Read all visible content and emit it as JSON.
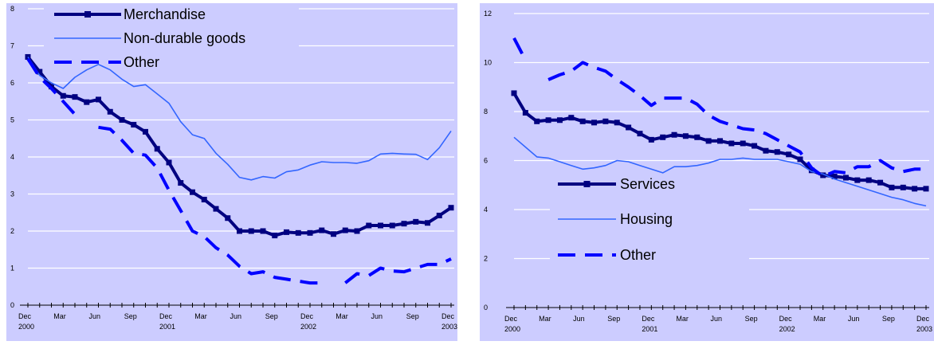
{
  "chart_data": [
    {
      "type": "line",
      "ylim": [
        0,
        8
      ],
      "yticks": [
        "0",
        "1",
        "2",
        "3",
        "4",
        "5",
        "6",
        "7",
        "8"
      ],
      "grid": "horizontal",
      "legend_position": "top-left",
      "background": "#ccccff",
      "xtick_months": [
        "Dec",
        "Mar",
        "Jun",
        "Sep",
        "Dec",
        "Mar",
        "Jun",
        "Sep",
        "Dec",
        "Mar",
        "Jun",
        "Sep",
        "Dec"
      ],
      "xtick_years": [
        "2000",
        "",
        "",
        "",
        "2001",
        "",
        "",
        "",
        "2002",
        "",
        "",
        "",
        "2003"
      ],
      "x": [
        "2000-12",
        "2001-01",
        "2001-02",
        "2001-03",
        "2001-04",
        "2001-05",
        "2001-06",
        "2001-07",
        "2001-08",
        "2001-09",
        "2001-10",
        "2001-11",
        "2001-12",
        "2002-01",
        "2002-02",
        "2002-03",
        "2002-04",
        "2002-05",
        "2002-06",
        "2002-07",
        "2002-08",
        "2002-09",
        "2002-10",
        "2002-11",
        "2002-12",
        "2003-01",
        "2003-02",
        "2003-03",
        "2003-04",
        "2003-05",
        "2003-06",
        "2003-07",
        "2003-08",
        "2003-09",
        "2003-10",
        "2003-11",
        "2003-12"
      ],
      "series": [
        {
          "name": "Merchandise",
          "style": "thick-markers",
          "color": "#000080",
          "values": [
            6.7,
            6.3,
            5.9,
            5.65,
            5.62,
            5.48,
            5.55,
            5.22,
            5.0,
            4.87,
            4.68,
            4.22,
            3.85,
            3.3,
            3.05,
            2.85,
            2.6,
            2.35,
            2.0,
            2.0,
            2.0,
            1.88,
            1.97,
            1.95,
            1.95,
            2.02,
            1.92,
            2.02,
            2.0,
            2.15,
            2.15,
            2.15,
            2.2,
            2.25,
            2.22,
            2.42,
            2.63
          ]
        },
        {
          "name": "Non-durable goods",
          "style": "thin",
          "color": "#3366ff",
          "values": [
            6.7,
            6.2,
            6.0,
            5.85,
            6.15,
            6.35,
            6.5,
            6.35,
            6.1,
            5.9,
            5.95,
            5.7,
            5.45,
            4.95,
            4.6,
            4.5,
            4.1,
            3.8,
            3.45,
            3.38,
            3.47,
            3.43,
            3.6,
            3.65,
            3.78,
            3.87,
            3.85,
            3.85,
            3.83,
            3.9,
            4.08,
            4.1,
            4.08,
            4.07,
            3.93,
            4.25,
            4.7
          ]
        },
        {
          "name": "Other",
          "style": "dashed",
          "color": "#0000ff",
          "values": [
            6.65,
            6.15,
            5.85,
            5.5,
            5.15,
            null,
            4.8,
            4.75,
            4.45,
            4.1,
            4.05,
            3.7,
            3.1,
            2.55,
            2.0,
            1.85,
            1.55,
            1.35,
            1.05,
            0.85,
            0.9,
            0.75,
            0.7,
            0.65,
            0.6,
            0.6,
            null,
            0.6,
            0.85,
            0.8,
            1.0,
            0.92,
            0.9,
            1.0,
            1.1,
            1.1,
            1.25
          ]
        }
      ]
    },
    {
      "type": "line",
      "ylim": [
        0,
        12
      ],
      "yticks": [
        "0",
        "2",
        "4",
        "6",
        "8",
        "10",
        "12"
      ],
      "grid": "horizontal",
      "legend_position": "bottom-left",
      "background": "#ccccff",
      "xtick_months": [
        "Dec",
        "Mar",
        "Jun",
        "Sep",
        "Dec",
        "Mar",
        "Jun",
        "Sep",
        "Dec",
        "Mar",
        "Jun",
        "Sep",
        "Dec"
      ],
      "xtick_years": [
        "2000",
        "",
        "",
        "",
        "2001",
        "",
        "",
        "",
        "2002",
        "",
        "",
        "",
        "2003"
      ],
      "x": [
        "2000-12",
        "2001-01",
        "2001-02",
        "2001-03",
        "2001-04",
        "2001-05",
        "2001-06",
        "2001-07",
        "2001-08",
        "2001-09",
        "2001-10",
        "2001-11",
        "2001-12",
        "2002-01",
        "2002-02",
        "2002-03",
        "2002-04",
        "2002-05",
        "2002-06",
        "2002-07",
        "2002-08",
        "2002-09",
        "2002-10",
        "2002-11",
        "2002-12",
        "2003-01",
        "2003-02",
        "2003-03",
        "2003-04",
        "2003-05",
        "2003-06",
        "2003-07",
        "2003-08",
        "2003-09",
        "2003-10",
        "2003-11",
        "2003-12"
      ],
      "series": [
        {
          "name": "Services",
          "style": "thick-markers",
          "color": "#000080",
          "values": [
            8.75,
            7.95,
            7.6,
            7.65,
            7.65,
            7.75,
            7.6,
            7.55,
            7.6,
            7.55,
            7.35,
            7.1,
            6.85,
            6.95,
            7.05,
            7.0,
            6.95,
            6.8,
            6.8,
            6.7,
            6.7,
            6.6,
            6.4,
            6.35,
            6.25,
            6.05,
            5.6,
            5.4,
            5.35,
            5.3,
            5.2,
            5.2,
            5.1,
            4.9,
            4.9,
            4.85,
            4.85
          ]
        },
        {
          "name": "Housing",
          "style": "thin",
          "color": "#3366ff",
          "values": [
            6.95,
            6.55,
            6.15,
            6.1,
            5.95,
            5.8,
            5.65,
            5.7,
            5.8,
            6.0,
            5.95,
            5.8,
            5.65,
            5.5,
            5.75,
            5.75,
            5.8,
            5.9,
            6.05,
            6.05,
            6.1,
            6.05,
            6.05,
            6.05,
            5.95,
            5.85,
            5.55,
            5.45,
            5.25,
            5.1,
            4.95,
            4.8,
            4.65,
            4.5,
            4.4,
            4.25,
            4.15
          ]
        },
        {
          "name": "Other",
          "style": "dashed",
          "color": "#0000ff",
          "values": [
            11.0,
            10.1,
            null,
            9.3,
            9.5,
            9.65,
            10.0,
            9.8,
            9.65,
            9.3,
            9.0,
            8.65,
            8.25,
            8.55,
            8.55,
            8.55,
            8.3,
            7.85,
            7.6,
            7.45,
            7.3,
            7.25,
            7.1,
            6.85,
            6.6,
            6.35,
            5.7,
            5.35,
            5.55,
            5.5,
            5.75,
            5.75,
            6.0,
            5.7,
            5.55,
            5.65,
            5.65
          ]
        }
      ]
    }
  ]
}
